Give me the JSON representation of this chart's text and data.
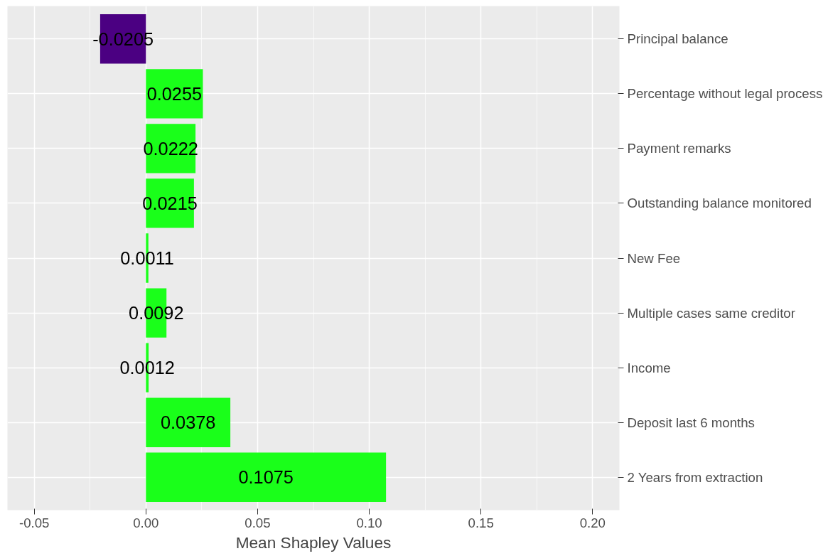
{
  "chart_data": {
    "type": "bar",
    "orientation": "horizontal",
    "xlabel": "Mean Shapley Values",
    "categories": [
      "Principal balance",
      "Percentage without legal process",
      "Payment remarks",
      "Outstanding balance monitored",
      "New Fee",
      "Multiple cases same creditor",
      "Income",
      "Deposit last 6 months",
      "2 Years from extraction"
    ],
    "values": [
      -0.0205,
      0.0255,
      0.0222,
      0.0215,
      0.0011,
      0.0092,
      0.0012,
      0.0378,
      0.1075
    ],
    "colors": [
      "#4b0082",
      "#1aff1a",
      "#1aff1a",
      "#1aff1a",
      "#1aff1a",
      "#1aff1a",
      "#1aff1a",
      "#1aff1a",
      "#1aff1a"
    ],
    "xlim": [
      -0.062,
      0.212
    ],
    "xticks": [
      {
        "value": -0.05,
        "label": "-0.05"
      },
      {
        "value": 0,
        "label": "0.00"
      },
      {
        "value": 0.05,
        "label": "0.05"
      },
      {
        "value": 0.1,
        "label": "0.10"
      },
      {
        "value": 0.15,
        "label": "0.15"
      },
      {
        "value": 0.2,
        "label": "0.20"
      }
    ],
    "grid": true,
    "data_labels": true
  }
}
